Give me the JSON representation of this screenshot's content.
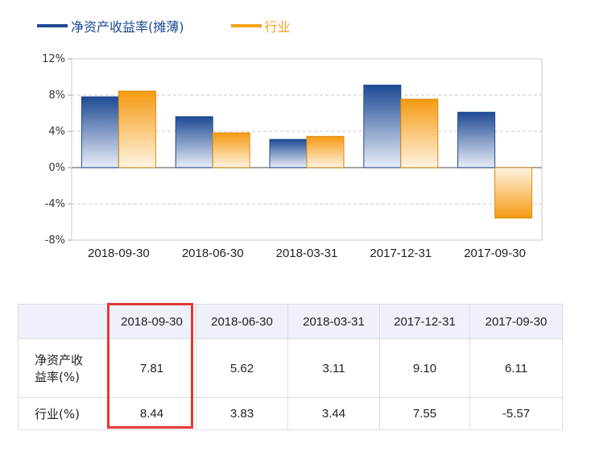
{
  "legend": [
    {
      "label": "净资产收益率(摊薄)",
      "color": "#1e4a94"
    },
    {
      "label": "行业",
      "color": "#f7a21a"
    }
  ],
  "chart_data": {
    "type": "bar",
    "categories": [
      "2018-09-30",
      "2018-06-30",
      "2018-03-31",
      "2017-12-31",
      "2017-09-30"
    ],
    "series": [
      {
        "name": "净资产收益率(摊薄)",
        "values": [
          7.81,
          5.62,
          3.11,
          9.1,
          6.11
        ],
        "color": "#1e4a94"
      },
      {
        "name": "行业",
        "values": [
          8.44,
          3.83,
          3.44,
          7.55,
          -5.57
        ],
        "color": "#f7a21a"
      }
    ],
    "yticks": [
      "12%",
      "8%",
      "4%",
      "0%",
      "-4%",
      "-8%"
    ],
    "ylim": [
      -8,
      12
    ],
    "grid": true,
    "legend_position": "top-left"
  },
  "table": {
    "headers": [
      "",
      "2018-09-30",
      "2018-06-30",
      "2018-03-31",
      "2017-12-31",
      "2017-09-30"
    ],
    "rows": [
      {
        "label_line1": "净资产收",
        "label_line2": "益率(%)",
        "values": [
          "7.81",
          "5.62",
          "3.11",
          "9.10",
          "6.11"
        ]
      },
      {
        "label_line1": "行业(%)",
        "label_line2": "",
        "values": [
          "8.44",
          "3.83",
          "3.44",
          "7.55",
          "-5.57"
        ]
      }
    ],
    "highlight_color": "#e53935"
  }
}
